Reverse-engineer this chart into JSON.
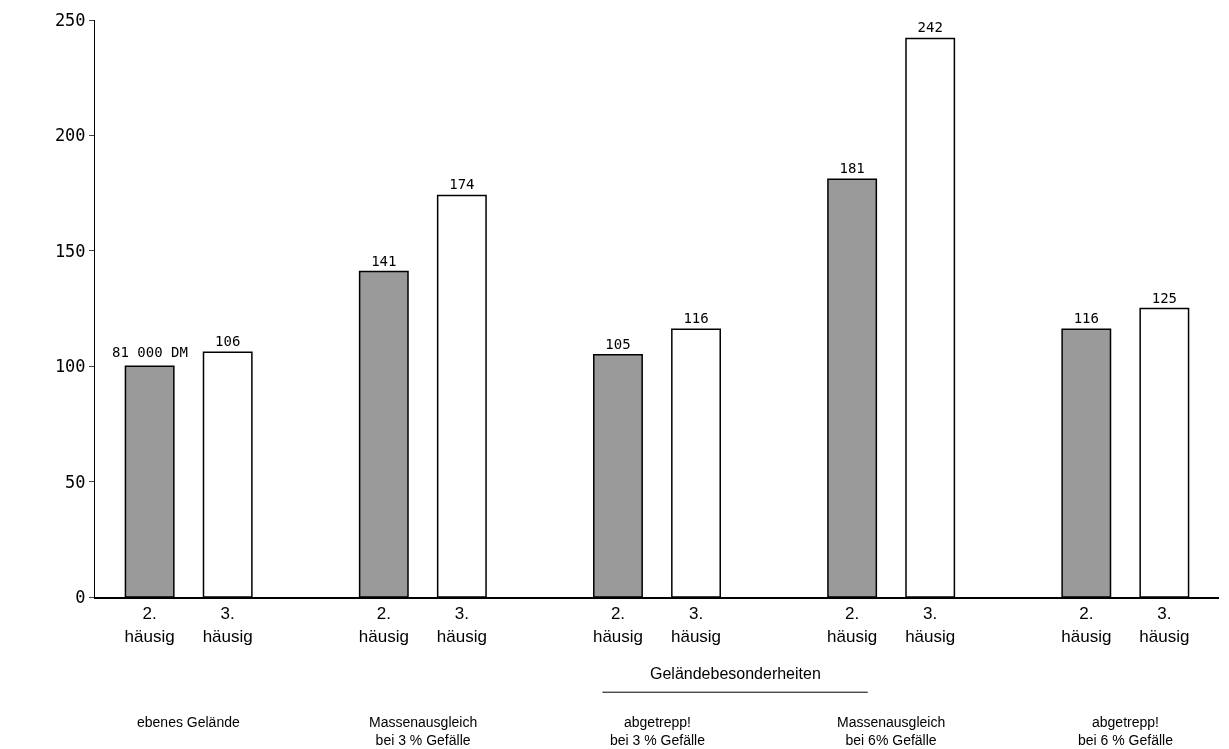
{
  "chart_data": {
    "type": "bar",
    "categories": [
      "2.\nhäusig",
      "3.\nhäusig",
      "2.\nhäusig",
      "3.\nhäusig",
      "2.\nhäusig",
      "3.\nhäusig",
      "2.\nhäusig",
      "3.\nhäusig",
      "2.\nhäusig",
      "3.\nhäusig"
    ],
    "values": [
      100,
      106,
      141,
      174,
      105,
      116,
      181,
      242,
      116,
      125
    ],
    "colors": [
      "#9a9a9a",
      "#ffffff",
      "#9a9a9a",
      "#ffffff",
      "#9a9a9a",
      "#ffffff",
      "#9a9a9a",
      "#ffffff",
      "#9a9a9a",
      "#ffffff"
    ],
    "value_labels": [
      null,
      "106",
      "141",
      "174",
      "105",
      "116",
      "181",
      "242",
      "116",
      "125"
    ],
    "ylim": [
      0,
      250
    ],
    "yticks": [
      0,
      50,
      100,
      150,
      200,
      250
    ],
    "grid": false,
    "annotations": [
      {
        "text": "81 000 DM",
        "y": 100
      },
      "ebenes Gelände",
      "Massenausgleich\nbei 3 % Gefälle",
      "abgetrepp!\nbei 3 % Gefälle",
      "Massenausgleich\nbei 6% Gefälle",
      "abgetrepp!\nbei 6 % Gefälle",
      "Geländebesonderheiten"
    ]
  }
}
